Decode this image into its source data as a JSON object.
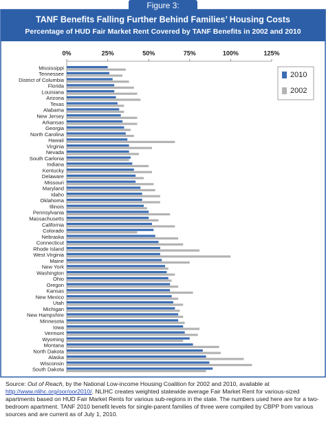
{
  "chart_data": {
    "type": "bar",
    "orientation": "horizontal",
    "figure_label": "Figure 3:",
    "title": "TANF Benefits Falling Further Behind Families’ Housing Costs",
    "subtitle": "Percentage of HUD Fair Market Rent Covered by TANF Benefits in 2002 and 2010",
    "categories": [
      "Mississippi",
      "Tennessee",
      "District of Columbia",
      "Florida",
      "Louisiana",
      "Arizona",
      "Texas",
      "Alabama",
      "New Jersey",
      "Arkansas",
      "Georgia",
      "North Carolina",
      "Hawaii",
      "Virginia",
      "Nevada",
      "South Carlonia",
      "Indiana",
      "Kentucky",
      "Delaware",
      "Missouri",
      "Maryland",
      "Idaho",
      "Oklahoma",
      "Illinois",
      "Pennsylvania",
      "Massachusetts",
      "California",
      "Colorado",
      "Nebraska",
      "Connecticut",
      "Rhode Island",
      "West Virginia",
      "Maine",
      "New York",
      "Washington",
      "Ohio",
      "Oregon",
      "Kansas",
      "New Mexico",
      "Utah",
      "Michigan",
      "New Hampshire",
      "Minnesota",
      "Iowa",
      "Vermont",
      "Wyoming",
      "Montana",
      "North Dakota",
      "Alaska",
      "Wisconsin",
      "South Dakota"
    ],
    "series": [
      {
        "name": "2010",
        "color": "#3b6db3",
        "values": [
          25,
          26,
          28,
          29,
          29,
          30,
          31,
          32,
          33,
          34,
          35,
          36,
          37,
          38,
          38,
          39,
          40,
          41,
          42,
          42,
          45,
          46,
          46,
          47,
          50,
          50,
          52,
          53,
          54,
          56,
          57,
          57,
          58,
          60,
          61,
          62,
          63,
          63,
          64,
          65,
          66,
          68,
          68,
          71,
          72,
          75,
          77,
          83,
          85,
          87,
          89
        ]
      },
      {
        "name": "2002",
        "color": "#b3b3b3",
        "values": [
          36,
          34,
          38,
          41,
          43,
          45,
          35,
          35,
          43,
          43,
          39,
          41,
          66,
          52,
          44,
          38,
          50,
          52,
          47,
          53,
          54,
          57,
          57,
          49,
          63,
          56,
          66,
          43,
          68,
          71,
          81,
          100,
          75,
          62,
          66,
          64,
          68,
          77,
          68,
          71,
          69,
          71,
          72,
          81,
          80,
          71,
          93,
          94,
          108,
          113,
          85
        ]
      }
    ],
    "xlim": [
      0,
      125
    ],
    "xticks": [
      {
        "value": 0,
        "label": "0%"
      },
      {
        "value": 25,
        "label": "25%"
      },
      {
        "value": 50,
        "label": "50%"
      },
      {
        "value": 75,
        "label": "75%"
      },
      {
        "value": 100,
        "label": "100%"
      },
      {
        "value": 125,
        "label": "125%"
      }
    ],
    "grid": false,
    "legend": "upper right",
    "notes": [
      "Source: ",
      "Out of Reach",
      ", by the National Low-income Housing Coalition for 2002 and 2010, available at ",
      "http://www.nlihc.org/oor/oor2010/",
      ".  NLIHC creates weighted statewide average Fair Market Rent for various-sized apartments based on HUD Fair Market Rents for various sub-regions in the state.  The numbers used here are for a two-bedroom apartment. TANF 2010 benefit levels for single-parent families of three were compiled by CBPP from various sources and are current as of July 1, 2010."
    ]
  }
}
